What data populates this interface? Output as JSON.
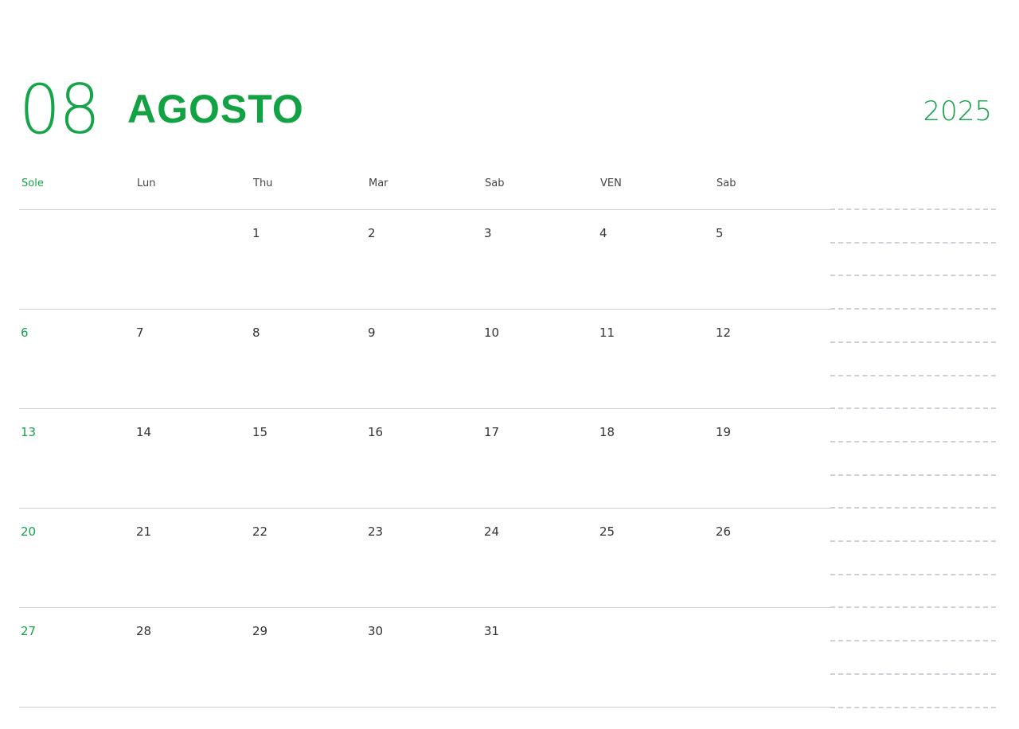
{
  "header": {
    "month_number": "08",
    "month_name": "AGOSTO",
    "year": "2025"
  },
  "weekdays": [
    "Sole",
    "Lun",
    "Thu",
    "Mar",
    "Sab",
    "VEN",
    "Sab"
  ],
  "weeks": [
    [
      "",
      "",
      "1",
      "2",
      "3",
      "4",
      "5"
    ],
    [
      "6",
      "7",
      "8",
      "9",
      "10",
      "11",
      "12"
    ],
    [
      "13",
      "14",
      "15",
      "16",
      "17",
      "18",
      "19"
    ],
    [
      "20",
      "21",
      "22",
      "23",
      "24",
      "25",
      "26"
    ],
    [
      "27",
      "28",
      "29",
      "30",
      "31",
      "",
      ""
    ]
  ],
  "colors": {
    "accent": "#16a34a",
    "text": "#333333",
    "rule": "#cccccc",
    "notes_dash": "#d4cdd8"
  }
}
